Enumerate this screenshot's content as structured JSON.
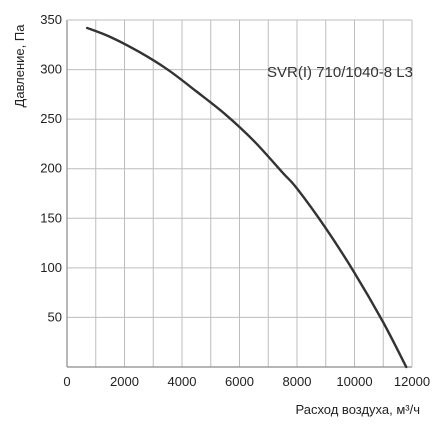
{
  "chart_data": {
    "type": "line",
    "title": "",
    "xlabel": "Расход воздуха, м³/ч",
    "ylabel": "Давление, Па",
    "xlim": [
      0,
      12000
    ],
    "ylim": [
      0,
      350
    ],
    "x_ticks": [
      0,
      2000,
      4000,
      6000,
      8000,
      10000,
      12000
    ],
    "y_ticks": [
      50,
      100,
      150,
      200,
      250,
      300,
      350
    ],
    "x_tick_labels": [
      "0",
      "2000",
      "4000",
      "6000",
      "8000",
      "10000",
      "12000"
    ],
    "y_tick_labels": [
      "50",
      "100",
      "150",
      "200",
      "250",
      "300",
      "350"
    ],
    "grid": true,
    "x_grid_step": 1000,
    "y_grid_step": 50,
    "series": [
      {
        "name": "SVR(I) 710/1040-8 L3",
        "color": "#333333",
        "x": [
          700,
          1500,
          2500,
          3500,
          4500,
          5500,
          6500,
          7500,
          8000,
          9000,
          10000,
          11000,
          11800
        ],
        "y": [
          342,
          333,
          318,
          300,
          278,
          255,
          228,
          196,
          180,
          140,
          95,
          45,
          0
        ]
      }
    ]
  }
}
